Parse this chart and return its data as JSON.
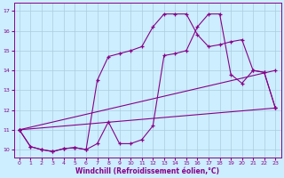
{
  "xlabel": "Windchill (Refroidissement éolien,°C)",
  "bg_color": "#cceeff",
  "grid_color": "#aaccdd",
  "line_color": "#880088",
  "xlim": [
    -0.5,
    23.5
  ],
  "ylim": [
    9.6,
    17.4
  ],
  "xticks": [
    0,
    1,
    2,
    3,
    4,
    5,
    6,
    7,
    8,
    9,
    10,
    11,
    12,
    13,
    14,
    15,
    16,
    17,
    18,
    19,
    20,
    21,
    22,
    23
  ],
  "yticks": [
    10,
    11,
    12,
    13,
    14,
    15,
    16,
    17
  ],
  "line1_x": [
    0,
    1,
    2,
    3,
    4,
    5,
    6,
    7,
    8,
    9,
    10,
    11,
    12,
    13,
    14,
    15,
    16,
    17,
    18,
    19,
    20,
    21,
    22,
    23
  ],
  "line1_y": [
    11.0,
    10.15,
    10.0,
    9.9,
    10.05,
    10.1,
    10.0,
    13.5,
    14.7,
    14.85,
    15.0,
    15.2,
    16.2,
    16.85,
    16.85,
    16.85,
    15.8,
    15.2,
    15.3,
    15.45,
    15.55,
    14.0,
    13.9,
    12.1
  ],
  "line2_x": [
    0,
    1,
    2,
    3,
    4,
    5,
    6,
    7,
    8,
    9,
    10,
    11,
    12,
    13,
    14,
    15,
    16,
    17,
    18,
    19,
    20,
    21,
    22,
    23
  ],
  "line2_y": [
    11.0,
    10.15,
    10.0,
    9.9,
    10.05,
    10.1,
    10.0,
    10.3,
    11.4,
    10.3,
    10.3,
    10.5,
    11.2,
    14.75,
    14.85,
    15.0,
    16.2,
    16.85,
    16.85,
    13.8,
    13.35,
    14.0,
    13.9,
    12.1
  ],
  "line3_x": [
    0,
    23
  ],
  "line3_y": [
    11.0,
    12.1
  ],
  "line4_x": [
    0,
    23
  ],
  "line4_y": [
    11.0,
    14.0
  ]
}
